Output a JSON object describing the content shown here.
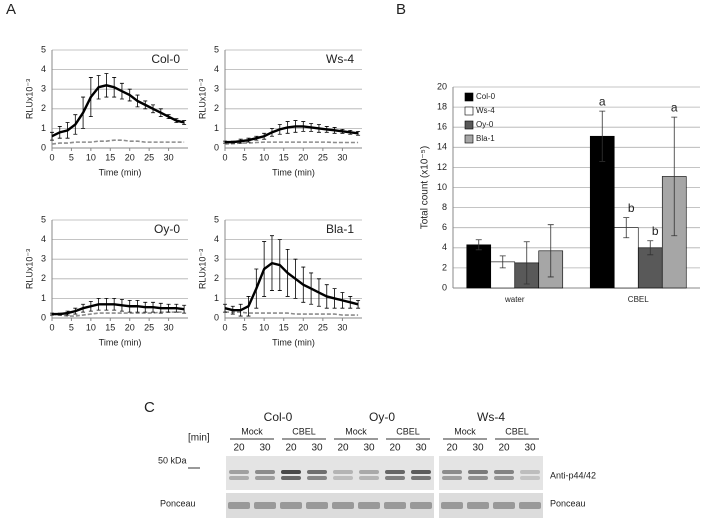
{
  "panel_labels": [
    "A",
    "B",
    "C"
  ],
  "chart_data": [
    {
      "type": "line",
      "title": "Col-0",
      "x_label": "Time (min)",
      "y_label": "RLUx10⁻³",
      "x": [
        0,
        2,
        4,
        6,
        8,
        10,
        12,
        14,
        16,
        18,
        20,
        22,
        24,
        26,
        28,
        30,
        32,
        34
      ],
      "xlim": [
        0,
        35
      ],
      "ylim": [
        0,
        5
      ],
      "xticks": [
        0,
        5,
        10,
        15,
        20,
        25,
        30
      ],
      "yticks": [
        0,
        1,
        2,
        3,
        4,
        5
      ],
      "grid": true,
      "series": [
        {
          "color": "#000000",
          "line_style": "solid",
          "values": [
            0.6,
            0.8,
            0.9,
            1.2,
            1.8,
            2.6,
            3.1,
            3.2,
            3.1,
            2.9,
            2.7,
            2.4,
            2.2,
            2.0,
            1.8,
            1.6,
            1.4,
            1.3
          ],
          "errors": [
            0.2,
            0.3,
            0.4,
            0.5,
            0.8,
            1.0,
            0.6,
            0.6,
            0.5,
            0.4,
            0.3,
            0.3,
            0.2,
            0.2,
            0.2,
            0.1,
            0.1,
            0.1
          ]
        },
        {
          "color": "#8c8c8c",
          "line_style": "dashed",
          "values": [
            0.2,
            0.25,
            0.25,
            0.3,
            0.3,
            0.3,
            0.35,
            0.35,
            0.4,
            0.4,
            0.35,
            0.35,
            0.3,
            0.3,
            0.3,
            0.3,
            0.3,
            0.3
          ]
        }
      ]
    },
    {
      "type": "line",
      "title": "Ws-4",
      "x_label": "Time (min)",
      "y_label": "RLUx10⁻³",
      "x": [
        0,
        2,
        4,
        6,
        8,
        10,
        12,
        14,
        16,
        18,
        20,
        22,
        24,
        26,
        28,
        30,
        32,
        34
      ],
      "xlim": [
        0,
        35
      ],
      "ylim": [
        0,
        5
      ],
      "xticks": [
        0,
        5,
        10,
        15,
        20,
        25,
        30
      ],
      "yticks": [
        0,
        1,
        2,
        3,
        4,
        5
      ],
      "grid": true,
      "series": [
        {
          "color": "#000000",
          "line_style": "solid",
          "values": [
            0.3,
            0.3,
            0.35,
            0.4,
            0.5,
            0.6,
            0.8,
            0.95,
            1.05,
            1.1,
            1.1,
            1.05,
            1.0,
            0.95,
            0.9,
            0.85,
            0.8,
            0.75
          ],
          "errors": [
            0.05,
            0.05,
            0.1,
            0.1,
            0.1,
            0.15,
            0.2,
            0.25,
            0.3,
            0.3,
            0.25,
            0.2,
            0.2,
            0.15,
            0.15,
            0.1,
            0.1,
            0.1
          ]
        },
        {
          "color": "#8c8c8c",
          "line_style": "dashed",
          "values": [
            0.2,
            0.22,
            0.25,
            0.25,
            0.28,
            0.3,
            0.3,
            0.3,
            0.3,
            0.3,
            0.3,
            0.3,
            0.3,
            0.3,
            0.28,
            0.28,
            0.28,
            0.28
          ]
        }
      ]
    },
    {
      "type": "line",
      "title": "Oy-0",
      "x_label": "Time (min)",
      "y_label": "RLUx10⁻³",
      "x": [
        0,
        2,
        4,
        6,
        8,
        10,
        12,
        14,
        16,
        18,
        20,
        22,
        24,
        26,
        28,
        30,
        32,
        34
      ],
      "xlim": [
        0,
        35
      ],
      "ylim": [
        0,
        5
      ],
      "xticks": [
        0,
        5,
        10,
        15,
        20,
        25,
        30
      ],
      "yticks": [
        0,
        1,
        2,
        3,
        4,
        5
      ],
      "grid": true,
      "series": [
        {
          "color": "#000000",
          "line_style": "solid",
          "values": [
            0.2,
            0.2,
            0.25,
            0.35,
            0.5,
            0.6,
            0.7,
            0.7,
            0.7,
            0.65,
            0.6,
            0.6,
            0.55,
            0.55,
            0.5,
            0.5,
            0.5,
            0.45
          ],
          "errors": [
            0.05,
            0.05,
            0.1,
            0.15,
            0.2,
            0.25,
            0.3,
            0.3,
            0.3,
            0.3,
            0.3,
            0.3,
            0.25,
            0.25,
            0.25,
            0.2,
            0.2,
            0.2
          ]
        },
        {
          "color": "#8c8c8c",
          "line_style": "dashed",
          "values": [
            0.2,
            0.15,
            0.1,
            0.1,
            0.15,
            0.2,
            0.25,
            0.25,
            0.25,
            0.25,
            0.25,
            0.25,
            0.25,
            0.25,
            0.3,
            0.3,
            0.3,
            0.3
          ]
        }
      ]
    },
    {
      "type": "line",
      "title": "Bla-1",
      "x_label": "Time (min)",
      "y_label": "RLUx10⁻³",
      "x": [
        0,
        2,
        4,
        6,
        8,
        10,
        12,
        14,
        16,
        18,
        20,
        22,
        24,
        26,
        28,
        30,
        32,
        34
      ],
      "xlim": [
        0,
        35
      ],
      "ylim": [
        0,
        5
      ],
      "xticks": [
        0,
        5,
        10,
        15,
        20,
        25,
        30
      ],
      "yticks": [
        0,
        1,
        2,
        3,
        4,
        5
      ],
      "grid": true,
      "series": [
        {
          "color": "#000000",
          "line_style": "solid",
          "values": [
            0.5,
            0.4,
            0.4,
            0.6,
            1.5,
            2.5,
            2.8,
            2.7,
            2.3,
            2.0,
            1.7,
            1.5,
            1.3,
            1.1,
            1.0,
            0.9,
            0.8,
            0.7
          ],
          "errors": [
            0.2,
            0.2,
            0.3,
            0.5,
            1.0,
            1.4,
            1.4,
            1.3,
            1.2,
            1.0,
            0.9,
            0.8,
            0.7,
            0.6,
            0.5,
            0.4,
            0.3,
            0.2
          ]
        },
        {
          "color": "#8c8c8c",
          "line_style": "dashed",
          "values": [
            0.3,
            0.3,
            0.3,
            0.25,
            0.25,
            0.25,
            0.25,
            0.25,
            0.25,
            0.2,
            0.2,
            0.2,
            0.2,
            0.2,
            0.2,
            0.15,
            0.15,
            0.15
          ]
        }
      ]
    },
    {
      "type": "bar",
      "y_label": "Total count (x10⁻⁵)",
      "categories": [
        "water",
        "CBEL"
      ],
      "ylim": [
        0,
        20
      ],
      "yticks": [
        0,
        2,
        4,
        6,
        8,
        10,
        12,
        14,
        16,
        18,
        20
      ],
      "grid": true,
      "legend": "top-left",
      "series": [
        {
          "name": "Col-0",
          "color": "#000000",
          "values": [
            4.3,
            15.1
          ],
          "errors": [
            0.5,
            2.5
          ],
          "labels": [
            null,
            "a"
          ]
        },
        {
          "name": "Ws-4",
          "color": "#ffffff",
          "values": [
            2.6,
            6.0
          ],
          "errors": [
            0.6,
            1.0
          ],
          "labels": [
            null,
            "b"
          ]
        },
        {
          "name": "Oy-0",
          "color": "#595959",
          "values": [
            2.5,
            4.0
          ],
          "errors": [
            2.1,
            0.7
          ],
          "labels": [
            null,
            "b"
          ]
        },
        {
          "name": "Bla-1",
          "color": "#a6a6a6",
          "values": [
            3.7,
            11.1
          ],
          "errors": [
            2.6,
            5.9
          ],
          "labels": [
            null,
            "a"
          ]
        }
      ]
    }
  ],
  "blot": {
    "unit_label": "[min]",
    "marker": "50 kDa",
    "left_label": "Ponceau",
    "right_labels": [
      "Anti-p44/42",
      "Ponceau"
    ],
    "groups": [
      {
        "name": "Col-0",
        "conditions": [
          {
            "name": "Mock",
            "times": [
              "20",
              "30"
            ]
          },
          {
            "name": "CBEL",
            "times": [
              "20",
              "30"
            ]
          }
        ]
      },
      {
        "name": "Oy-0",
        "conditions": [
          {
            "name": "Mock",
            "times": [
              "20",
              "30"
            ]
          },
          {
            "name": "CBEL",
            "times": [
              "20",
              "30"
            ]
          }
        ]
      },
      {
        "name": "Ws-4",
        "conditions": [
          {
            "name": "Mock",
            "times": [
              "20",
              "30"
            ]
          },
          {
            "name": "CBEL",
            "times": [
              "20",
              "30"
            ]
          }
        ]
      }
    ]
  }
}
